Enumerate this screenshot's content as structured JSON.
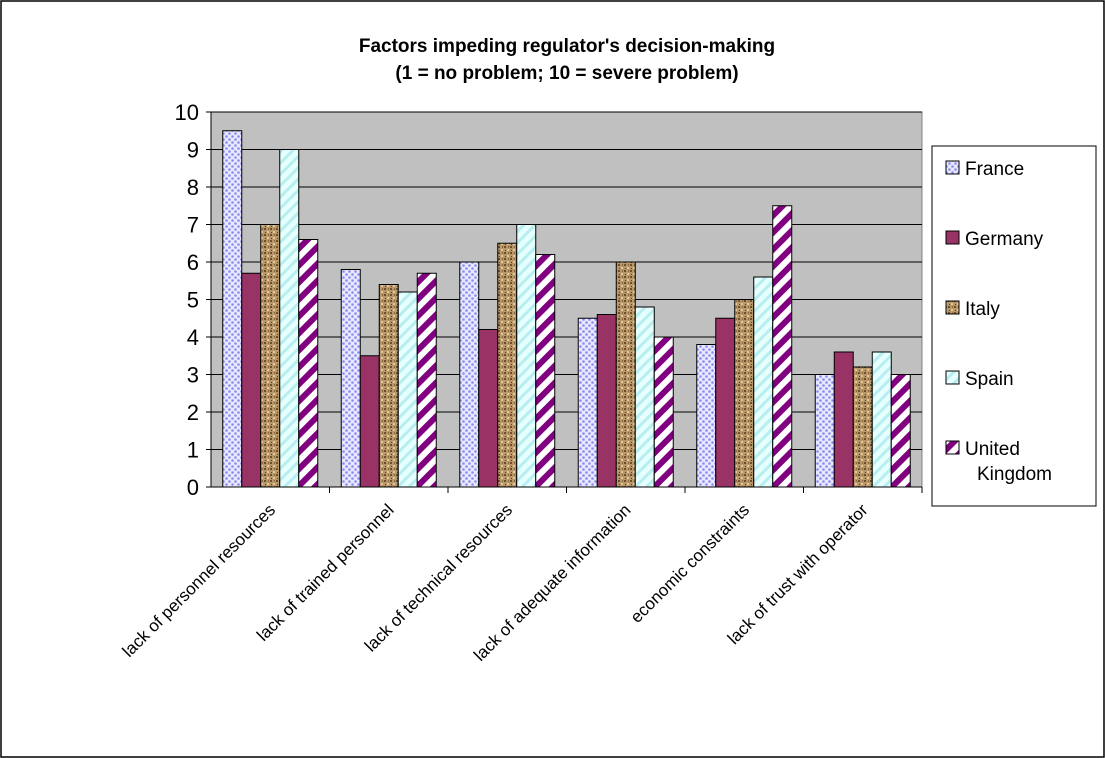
{
  "chart_data": {
    "type": "bar",
    "title": "Factors impeding regulator's decision-making",
    "subtitle": "(1 = no problem; 10 = severe problem)",
    "categories": [
      "lack of personnel resources",
      "lack of trained personnel",
      "lack of technical resources",
      "lack of adequate information",
      "economic constraints",
      "lack of trust with operator"
    ],
    "series": [
      {
        "name": "France",
        "values": [
          9.5,
          5.8,
          6.0,
          4.5,
          3.8,
          3.0
        ],
        "color": "#9999ff",
        "pattern": "dots"
      },
      {
        "name": "Germany",
        "values": [
          5.7,
          3.5,
          4.2,
          4.6,
          4.5,
          3.6
        ],
        "color": "#993366",
        "pattern": "solid"
      },
      {
        "name": "Italy",
        "values": [
          7.0,
          5.4,
          6.5,
          6.0,
          5.0,
          3.2
        ],
        "color": "#a8875a",
        "pattern": "texture"
      },
      {
        "name": "Spain",
        "values": [
          9.0,
          5.2,
          7.0,
          4.8,
          5.6,
          3.6
        ],
        "color": "#ccffff",
        "pattern": "light-diagonal"
      },
      {
        "name": "United Kingdom",
        "values": [
          6.6,
          5.7,
          6.2,
          4.0,
          7.5,
          3.0
        ],
        "color": "#800080",
        "pattern": "wide-diagonal"
      }
    ],
    "ylim": [
      0,
      10
    ],
    "yticks": [
      0,
      1,
      2,
      3,
      4,
      5,
      6,
      7,
      8,
      9,
      10
    ],
    "grid": true,
    "plot_background": "#c0c0c0",
    "legend_position": "right"
  }
}
